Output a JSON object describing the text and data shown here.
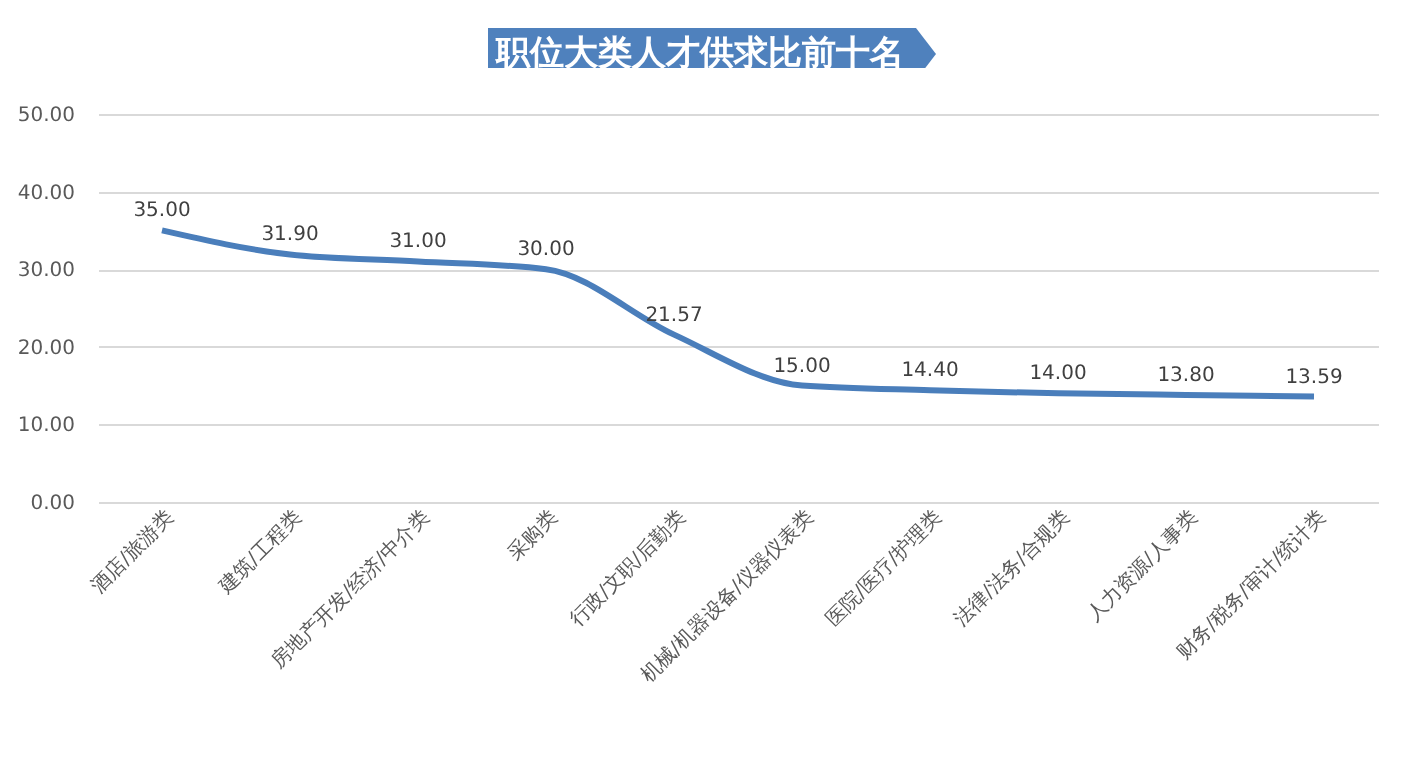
{
  "chart_data": {
    "type": "line",
    "title": "职位大类人才供求比前十名",
    "categories": [
      "酒店/旅游类",
      "建筑/工程类",
      "房地产开发/经济/中介类",
      "采购类",
      "行政/文职/后勤类",
      "机械/机器设备/仪器仪表类",
      "医院/医疗/护理类",
      "法律/法务/合规类",
      "人力资源/人事类",
      "财务/税务/审计/统计类"
    ],
    "series": [
      {
        "color": "#4a7ebb",
        "values": [
          35.0,
          31.9,
          31.0,
          30.0,
          21.57,
          15.0,
          14.4,
          14.0,
          13.8,
          13.59
        ],
        "value_labels": [
          "35.00",
          "31.90",
          "31.00",
          "30.00",
          "21.57",
          "15.00",
          "14.40",
          "14.00",
          "13.80",
          "13.59"
        ]
      }
    ],
    "ylim": [
      0,
      50
    ],
    "yticks": [
      {
        "value": 0,
        "label": "0.00"
      },
      {
        "value": 10,
        "label": "10.00"
      },
      {
        "value": 20,
        "label": "20.00"
      },
      {
        "value": 30,
        "label": "30.00"
      },
      {
        "value": 40,
        "label": "40.00"
      },
      {
        "value": 50,
        "label": "50.00"
      }
    ],
    "grid": "y",
    "marker": "none",
    "line_style": "solid",
    "legend": false
  }
}
